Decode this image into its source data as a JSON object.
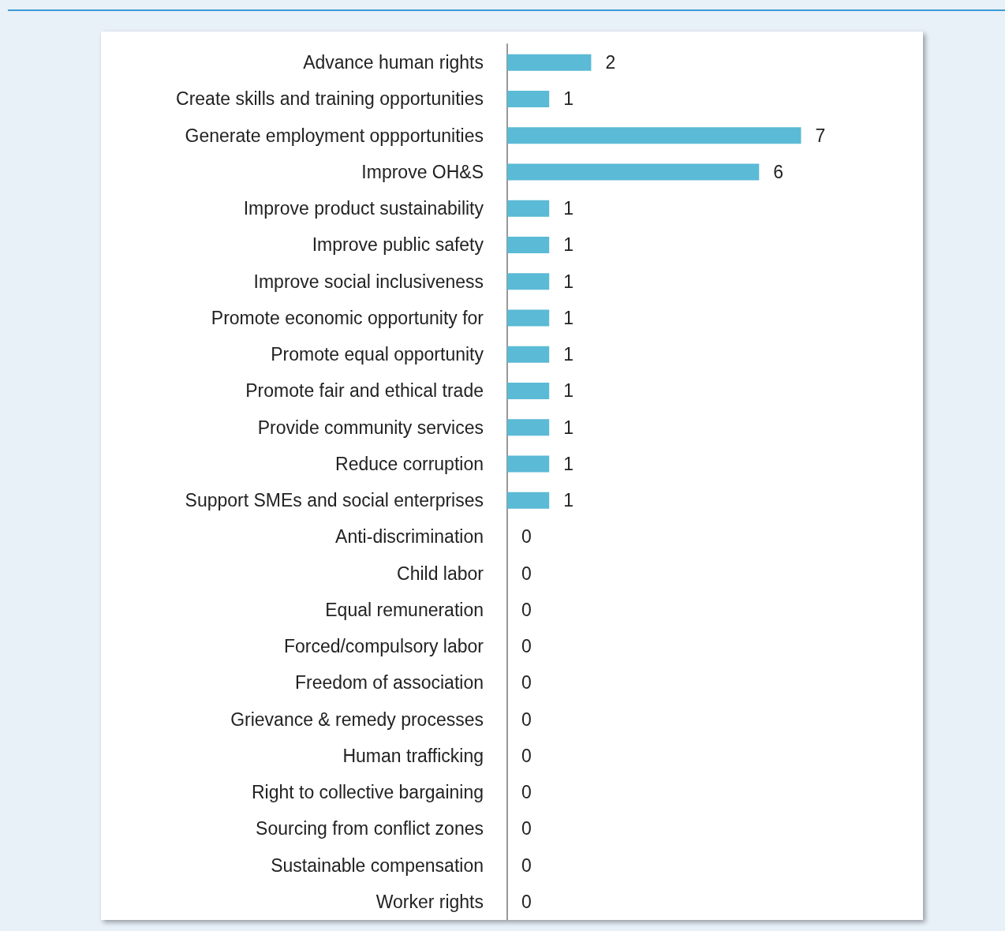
{
  "chart_data": {
    "type": "bar",
    "orientation": "horizontal",
    "data_labels": true,
    "color": "#5bbad5",
    "categories": [
      "Advance human rights",
      "Create skills and training opportunities",
      "Generate employment oppportunities",
      "Improve OH&S",
      "Improve product sustainability",
      "Improve public safety",
      "Improve social inclusiveness",
      "Promote economic opportunity for",
      "Promote equal opportunity",
      "Promote fair and ethical trade",
      "Provide community services",
      "Reduce corruption",
      "Support SMEs and social enterprises",
      "Anti-discrimination",
      "Child labor",
      "Equal remuneration",
      "Forced/compulsory labor",
      "Freedom of association",
      "Grievance & remedy processes",
      "Human trafficking",
      "Right to collective bargaining",
      "Sourcing from conflict zones",
      "Sustainable compensation",
      "Worker rights"
    ],
    "values": [
      2,
      1,
      7,
      6,
      1,
      1,
      1,
      1,
      1,
      1,
      1,
      1,
      1,
      0,
      0,
      0,
      0,
      0,
      0,
      0,
      0,
      0,
      0,
      0
    ]
  }
}
